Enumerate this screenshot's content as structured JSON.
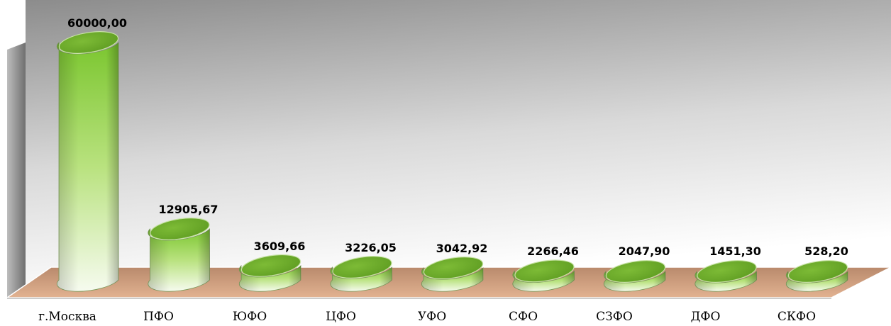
{
  "chart_data": {
    "type": "bar",
    "style": "3d-cylinder",
    "categories": [
      "г.Москва",
      "ПФО",
      "ЮФО",
      "ЦФО",
      "УФО",
      "СФО",
      "СЗФО",
      "ДФО",
      "СКФО"
    ],
    "values": [
      60000.0,
      12905.67,
      3609.66,
      3226.05,
      3042.92,
      2266.46,
      2047.9,
      1451.3,
      528.2
    ],
    "value_labels": [
      "60000,00",
      "12905,67",
      "3609,66",
      "3226,05",
      "3042,92",
      "2266,46",
      "2047,90",
      "1451,30",
      "528,20"
    ],
    "title": "",
    "xlabel": "",
    "ylabel": "",
    "grid": false,
    "legend": "none",
    "colors": {
      "bar_top": "#6fae2a",
      "bar_body_dark": "#7cc832",
      "bar_body_light": "#f4fbe9",
      "floor": "#c9916a",
      "back_wall_dark": "#8a8a8a",
      "back_wall_light": "#ffffff"
    }
  }
}
